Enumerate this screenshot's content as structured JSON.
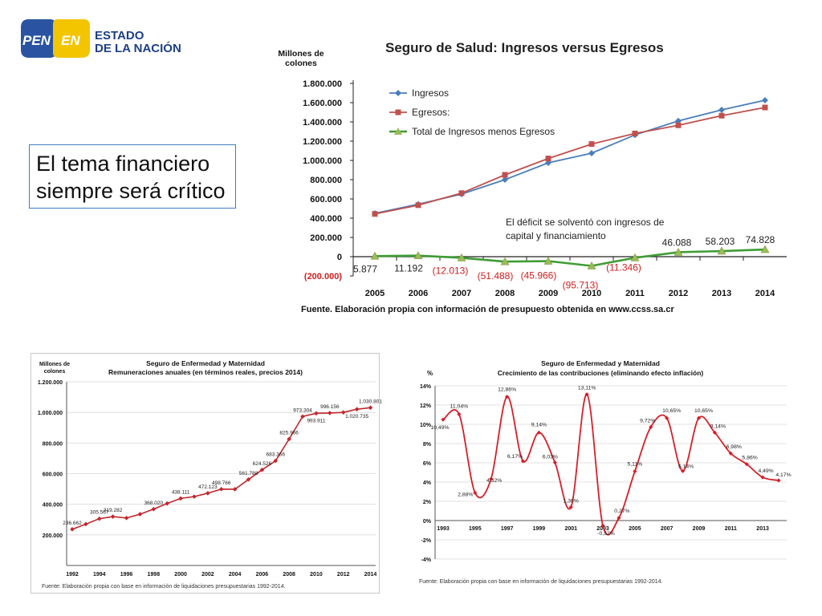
{
  "logo": {
    "left": "PEN",
    "right": "EN",
    "line1": "ESTADO",
    "line2": "DE LA NACIÓN"
  },
  "subtitle": "El tema financiero siempre será crítico",
  "chart_data": [
    {
      "type": "line",
      "title": "Seguro de Salud: Ingresos versus Egresos",
      "ylabel": "Millones de colones",
      "categories": [
        "2005",
        "2006",
        "2007",
        "2008",
        "2009",
        "2010",
        "2011",
        "2012",
        "2013",
        "2014"
      ],
      "ylim": [
        -200000,
        1800000
      ],
      "yticks": [
        -200000,
        0,
        200000,
        400000,
        600000,
        800000,
        1000000,
        1200000,
        1400000,
        1600000,
        1800000
      ],
      "ytick_labels": [
        "(200.000)",
        "0",
        "200.000",
        "400.000",
        "600.000",
        "800.000",
        "1.000.000",
        "1.200.000",
        "1.400.000",
        "1.600.000",
        "1.800.000"
      ],
      "series": [
        {
          "name": "Ingresos",
          "color": "#4a7ebb",
          "values": [
            450000,
            545000,
            650000,
            800000,
            975000,
            1075000,
            1265000,
            1410000,
            1525000,
            1625000
          ]
        },
        {
          "name": "Egresos:",
          "color": "#c0504d",
          "values": [
            444000,
            535000,
            660000,
            850000,
            1020000,
            1170000,
            1280000,
            1365000,
            1465000,
            1550000
          ]
        },
        {
          "name": "Total de Ingresos menos Egresos",
          "color": "#3f9c35",
          "values": [
            5877,
            11192,
            -12013,
            -51488,
            -45966,
            -95713,
            -11346,
            46088,
            58203,
            74828
          ]
        }
      ],
      "data_labels": [
        "5.877",
        "11.192",
        "(12.013)",
        "(51.488)",
        "(45.966)",
        "(95.713)",
        "(11.346)",
        "46.088",
        "58.203",
        "74.828"
      ],
      "annotation": "El déficit se solventó con ingresos de capital y financiamiento",
      "source": "Fuente. Elaboración propia con información de presupuesto obtenida en www.ccss.sa.cr",
      "legend": "top-left",
      "grid": false
    },
    {
      "type": "line",
      "title": "Seguro de Enfermedad y Maternidad",
      "subtitle": "Remuneraciones anuales (en términos reales, precios 2014)",
      "ylabel": "Millones de colones",
      "x": [
        1992,
        1993,
        1994,
        1995,
        1996,
        1997,
        1998,
        1999,
        2000,
        2001,
        2002,
        2003,
        2004,
        2005,
        2006,
        2007,
        2008,
        2009,
        2010,
        2011,
        2012,
        2013,
        2014
      ],
      "xtick_labels": [
        "1992",
        "1994",
        "1996",
        "1998",
        "2000",
        "2002",
        "2004",
        "2006",
        "2008",
        "2010",
        "2012",
        "2014"
      ],
      "values": [
        236662,
        270000,
        305567,
        319282,
        310000,
        335000,
        368020,
        405000,
        438111,
        450000,
        472123,
        498766,
        498000,
        561788,
        624526,
        683366,
        825966,
        973304,
        993911,
        996156,
        1000000,
        1020735,
        1030801
      ],
      "labels": {
        "0": "236.662",
        "2": "305.567",
        "3": "319.282",
        "6": "368.020",
        "8": "438.111",
        "10": "472.123",
        "11": "498.766",
        "13": "561.788",
        "14": "624.526",
        "15": "683.366",
        "16": "825.966",
        "17": "973.304",
        "18": "993.911",
        "19": "996.156",
        "21": "1.020.735",
        "22": "1.030.801"
      },
      "ylim": [
        0,
        1200000
      ],
      "yticks": [
        200000,
        400000,
        600000,
        800000,
        1000000,
        1200000
      ],
      "ytick_labels": [
        "200.000",
        "400.000",
        "600.000",
        "800.000",
        "1.000.000",
        "1.200.000"
      ],
      "color": "#c0272d",
      "source": "Fuente: Elaboración propia con base en información de liquidaciones presupuestarias 1992-2014.",
      "grid": true
    },
    {
      "type": "line",
      "title": "Seguro de Enfermedad y Maternidad",
      "subtitle": "Crecimiento de las contribuciones (eliminando efecto inflación)",
      "ylabel": "%",
      "x": [
        1993,
        1994,
        1995,
        1996,
        1997,
        1998,
        1999,
        2000,
        2001,
        2002,
        2003,
        2004,
        2005,
        2006,
        2007,
        2008,
        2009,
        2010,
        2011,
        2012,
        2013,
        2014
      ],
      "xtick_labels": [
        "1993",
        "1995",
        "1997",
        "1999",
        "2001",
        "2003",
        "2005",
        "2007",
        "2009",
        "2011",
        "2013"
      ],
      "values": [
        10.49,
        11.04,
        2.88,
        4.32,
        12.86,
        6.17,
        9.14,
        6.03,
        1.39,
        13.11,
        -0.52,
        0.27,
        5.11,
        9.72,
        10.65,
        5.14,
        10.65,
        9.14,
        6.98,
        5.86,
        4.49,
        4.17
      ],
      "labels": [
        "10,49%",
        "11,04%",
        "2,88%",
        "4,32%",
        "12,86%",
        "6,17%",
        "9,14%",
        "6,03%",
        "1,39%",
        "13,11%",
        "-0,52%",
        "0,27%",
        "5,11%",
        "9,72%",
        "10,65%",
        "5,14%",
        "10,65%",
        "9,14%",
        "6,98%",
        "5,86%",
        "4,49%",
        "4,17%"
      ],
      "ylim": [
        -4,
        14
      ],
      "yticks": [
        -4,
        -2,
        0,
        2,
        4,
        6,
        8,
        10,
        12,
        14
      ],
      "ytick_labels": [
        "-4%",
        "-2%",
        "0%",
        "2%",
        "4%",
        "6%",
        "8%",
        "10%",
        "12%",
        "14%"
      ],
      "color": "#d4202a",
      "source": "Fuente: Elaboración propia con base en información de liquidaciones presupuestarias 1992-2014.",
      "grid": true
    }
  ]
}
